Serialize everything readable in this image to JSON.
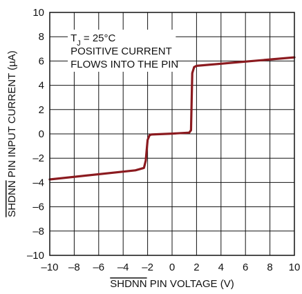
{
  "chart_data": {
    "type": "line",
    "xlabel": "SHDNN PIN VOLTAGE (V)",
    "ylabel": "SHDNN PIN INPUT CURRENT (µA)",
    "overline_word": "SHDNN",
    "xlim": [
      -10,
      10
    ],
    "ylim": [
      -10,
      10
    ],
    "x_ticks": [
      -10,
      -8,
      -6,
      -4,
      -2,
      0,
      2,
      4,
      6,
      8,
      10
    ],
    "y_ticks": [
      -10,
      -8,
      -6,
      -4,
      -2,
      0,
      2,
      4,
      6,
      8,
      10
    ],
    "x_tick_labels": [
      "–10",
      "–8",
      "–6",
      "–4",
      "–2",
      "0",
      "2",
      "4",
      "6",
      "8",
      "10"
    ],
    "y_tick_labels": [
      "–10",
      "–8",
      "–6",
      "–4",
      "–2",
      "0",
      "2",
      "4",
      "6",
      "8",
      "10"
    ],
    "grid": true,
    "annotation": {
      "line1_prefix": "T",
      "line1_subscript": "J",
      "line1_suffix": " = 25°C",
      "line2": "POSITIVE CURRENT",
      "line3": "FLOWS INTO THE PIN"
    },
    "series": [
      {
        "color": "#8b1a1f",
        "x": [
          -10,
          -3.0,
          -2.3,
          -2.15,
          -2.0,
          -1.85,
          -1.7,
          0,
          1.4,
          1.55,
          1.65,
          1.8,
          2.0,
          10
        ],
        "y": [
          -3.75,
          -3.0,
          -2.8,
          -2.2,
          -0.5,
          -0.12,
          -0.05,
          0.02,
          0.1,
          0.3,
          5.0,
          5.5,
          5.6,
          6.3
        ]
      }
    ]
  }
}
